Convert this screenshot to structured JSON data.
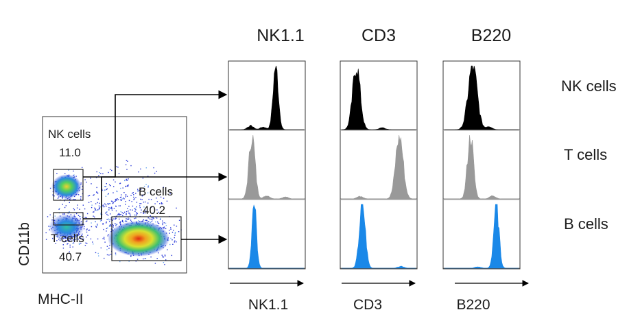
{
  "columns": [
    {
      "title": "NK1.1",
      "xlabel": "NK1.1"
    },
    {
      "title": "CD3",
      "xlabel": "CD3"
    },
    {
      "title": "B220",
      "xlabel": "B220"
    }
  ],
  "rows": [
    {
      "label": "NK cells",
      "color": "#000000"
    },
    {
      "label": "T cells",
      "color": "#999999"
    },
    {
      "label": "B cells",
      "color": "#1a88e8"
    }
  ],
  "dotplot": {
    "xlabel": "MHC-II",
    "ylabel": "CD11b",
    "gates": [
      {
        "name": "NK cells",
        "value": "11.0"
      },
      {
        "name": "T cells",
        "value": "40.7"
      },
      {
        "name": "B cells",
        "value": "40.2"
      }
    ]
  },
  "histograms": [
    [
      {
        "peak": 0.62,
        "width": 0.035,
        "minor": [
          [
            0.28,
            0.06
          ],
          [
            0.45,
            0.04
          ]
        ]
      },
      {
        "peak": 0.2,
        "width": 0.05,
        "minor": [
          [
            0.55,
            0.03
          ]
        ]
      },
      {
        "peak": 0.38,
        "width": 0.06,
        "minor": [
          [
            0.6,
            0.05
          ]
        ]
      }
    ],
    [
      {
        "peak": 0.3,
        "width": 0.04,
        "minor": [
          [
            0.5,
            0.05
          ],
          [
            0.75,
            0.03
          ]
        ]
      },
      {
        "peak": 0.78,
        "width": 0.05,
        "minor": [
          [
            0.25,
            0.04
          ]
        ]
      },
      {
        "peak": 0.35,
        "width": 0.04,
        "minor": [
          [
            0.65,
            0.05
          ]
        ]
      }
    ],
    [
      {
        "peak": 0.33,
        "width": 0.03,
        "minor": []
      },
      {
        "peak": 0.28,
        "width": 0.04,
        "minor": [
          [
            0.8,
            0.03
          ]
        ]
      },
      {
        "peak": 0.7,
        "width": 0.035,
        "minor": [
          [
            0.45,
            0.02
          ]
        ]
      }
    ]
  ]
}
